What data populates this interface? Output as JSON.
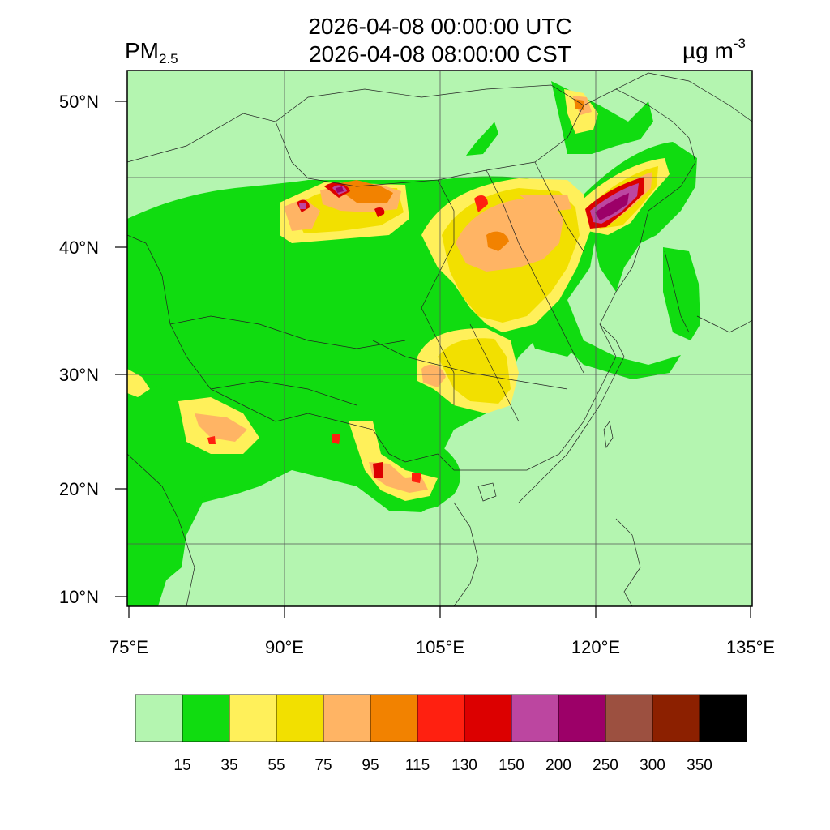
{
  "header": {
    "variable_main": "PM",
    "variable_sub": "2.5",
    "time_utc": "2026-04-08 00:00:00 UTC",
    "time_cst": "2026-04-08 08:00:00 CST",
    "units_main": "µg m",
    "units_sup": "-3"
  },
  "axes": {
    "lat_ticks": [
      "50°N",
      "40°N",
      "30°N",
      "20°N",
      "10°N"
    ],
    "lon_ticks": [
      "75°E",
      "90°E",
      "105°E",
      "120°E",
      "135°E"
    ]
  },
  "colorbar": {
    "colors": [
      "#b4f5b0",
      "#10dc10",
      "#fff05a",
      "#f2e000",
      "#ffb464",
      "#f28200",
      "#ff2010",
      "#dc0000",
      "#bc46a0",
      "#9c0068",
      "#9c5040",
      "#8c2000",
      "#000000"
    ],
    "labels": [
      "15",
      "35",
      "55",
      "75",
      "95",
      "115",
      "130",
      "150",
      "200",
      "250",
      "300",
      "350"
    ]
  },
  "map_colors": {
    "background": "#b4f5b0",
    "green": "#10dc10",
    "light_yellow": "#fff05a",
    "yellow": "#f2e000",
    "light_orange": "#ffb464",
    "orange": "#f28200",
    "red": "#ff2010",
    "dark_red": "#dc0000",
    "magenta": "#bc46a0",
    "purple": "#9c0068"
  }
}
